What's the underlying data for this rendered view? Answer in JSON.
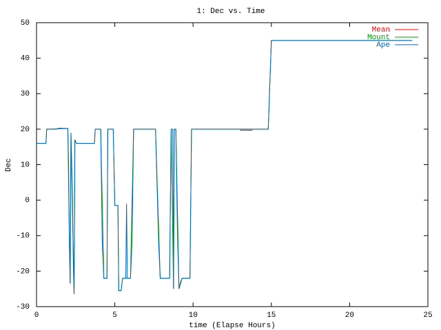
{
  "chart_data": {
    "type": "line",
    "title": "1: Dec vs. Time",
    "x_label": "time (Elapse Hours)",
    "y_label": "Dec",
    "xlim": [
      0,
      25
    ],
    "xticks": [
      0,
      5,
      10,
      15,
      20,
      25
    ],
    "ylim": [
      -30,
      50
    ],
    "yticks": [
      -30,
      -20,
      -10,
      0,
      10,
      20,
      30,
      40,
      50
    ],
    "grid": false,
    "legend": "top-right",
    "series": [
      {
        "name": "Mean",
        "color": "#ff0000",
        "x": [
          13.0,
          13.8
        ],
        "values": [
          19.7,
          19.7
        ]
      },
      {
        "name": "Mount",
        "color": "#00a000",
        "x": [
          0,
          0.6,
          0.65,
          2.0,
          2.1,
          2.15,
          2.2,
          2.4,
          2.45,
          2.55,
          3.7,
          3.75,
          4.1,
          4.3,
          4.5,
          4.55,
          4.9,
          5.0,
          5.2,
          5.25,
          5.4,
          5.5,
          6.0,
          6.2,
          7.6,
          7.9,
          8.5,
          8.6,
          8.75,
          8.8,
          8.9,
          9.1,
          9.3,
          9.8,
          9.9,
          14.8,
          15.0,
          24.0
        ],
        "values": [
          16,
          16,
          20,
          20.2,
          -12,
          -23.5,
          19,
          -26.5,
          17,
          16,
          16,
          20,
          20,
          -22,
          -22,
          20,
          20,
          -1.5,
          -1.5,
          -25.5,
          -25.5,
          -22,
          -22,
          20,
          20,
          -22,
          -22,
          20,
          -25,
          20,
          20,
          -25,
          -22,
          -22,
          20,
          20,
          45,
          45
        ]
      },
      {
        "name": "Ape",
        "color": "#0060c0",
        "x": [
          0,
          0.6,
          0.65,
          1.3,
          1.4,
          2.0,
          2.05,
          2.1,
          2.15,
          2.2,
          2.3,
          2.35,
          2.4,
          2.45,
          2.55,
          3.7,
          3.75,
          4.1,
          4.2,
          4.3,
          4.5,
          4.55,
          4.9,
          5.0,
          5.2,
          5.25,
          5.4,
          5.5,
          5.7,
          5.75,
          5.8,
          6.0,
          6.1,
          6.2,
          7.6,
          7.8,
          7.9,
          8.5,
          8.6,
          8.7,
          8.75,
          8.8,
          8.9,
          9.0,
          9.1,
          9.2,
          9.3,
          9.8,
          9.9,
          14.8,
          14.85,
          15.0,
          24.0
        ],
        "values": [
          16,
          16,
          20,
          20,
          20.3,
          20.2,
          10,
          -12,
          -23.5,
          19,
          0,
          -18,
          -26.5,
          17,
          16,
          16,
          20,
          20,
          -12,
          -22,
          -22,
          20,
          20,
          -1.5,
          -1.5,
          -25.5,
          -25.5,
          -22,
          -22,
          -1,
          -22,
          -22,
          -12,
          20,
          20,
          -12,
          -22,
          -22,
          20,
          20,
          -25,
          20,
          20,
          -9,
          -25,
          -23,
          -22,
          -22,
          20,
          20,
          26,
          45,
          45
        ]
      }
    ]
  }
}
